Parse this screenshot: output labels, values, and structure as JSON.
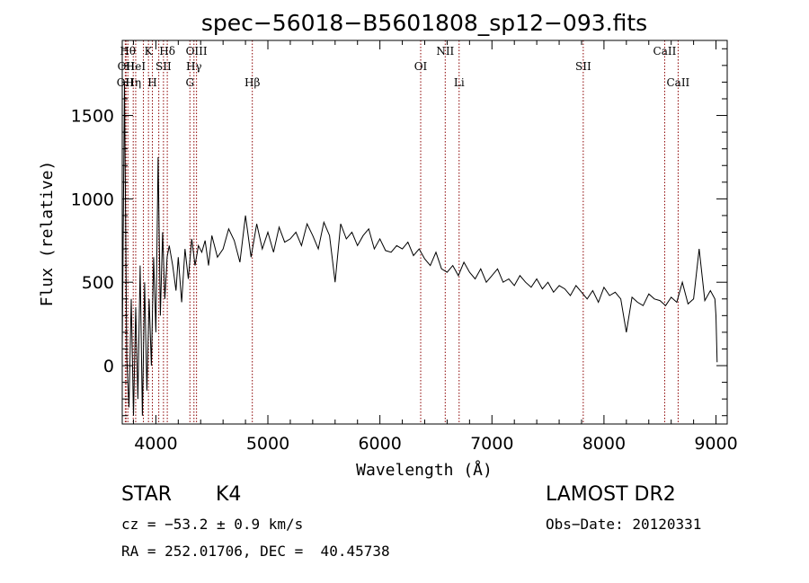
{
  "chart_data": {
    "type": "line",
    "title": "spec−56018−B5601808_sp12−093.fits",
    "xlabel": "Wavelength (Å)",
    "ylabel": "Flux (relative)",
    "xlim": [
      3700,
      9100
    ],
    "ylim": [
      -350,
      1950
    ],
    "xticks": [
      4000,
      5000,
      6000,
      7000,
      8000,
      9000
    ],
    "yticks": [
      0,
      500,
      1000,
      1500
    ],
    "series": [
      {
        "x": [
          3700,
          3720,
          3740,
          3760,
          3780,
          3800,
          3820,
          3840,
          3860,
          3880,
          3900,
          3920,
          3940,
          3960,
          3980,
          4000,
          4020,
          4040,
          4060,
          4080,
          4100,
          4120,
          4150,
          4180,
          4200,
          4230,
          4260,
          4290,
          4320,
          4350,
          4380,
          4410,
          4440,
          4470,
          4500,
          4550,
          4600,
          4650,
          4700,
          4750,
          4800,
          4850,
          4900,
          4950,
          5000,
          5050,
          5100,
          5150,
          5200,
          5250,
          5300,
          5350,
          5400,
          5450,
          5500,
          5550,
          5600,
          5650,
          5700,
          5750,
          5800,
          5850,
          5900,
          5950,
          6000,
          6050,
          6100,
          6150,
          6200,
          6250,
          6300,
          6350,
          6400,
          6450,
          6500,
          6550,
          6600,
          6650,
          6700,
          6750,
          6800,
          6850,
          6900,
          6950,
          7000,
          7050,
          7100,
          7150,
          7200,
          7250,
          7300,
          7350,
          7400,
          7450,
          7500,
          7550,
          7600,
          7650,
          7700,
          7750,
          7800,
          7850,
          7900,
          7950,
          8000,
          8050,
          8100,
          8150,
          8200,
          8250,
          8300,
          8350,
          8400,
          8450,
          8500,
          8550,
          8600,
          8650,
          8700,
          8750,
          8800,
          8850,
          8900,
          8950,
          8990,
          9000,
          9010
        ],
        "y": [
          100,
          1700,
          50,
          -250,
          400,
          -300,
          350,
          -200,
          600,
          -300,
          500,
          -150,
          400,
          0,
          650,
          200,
          1250,
          300,
          800,
          400,
          650,
          720,
          600,
          450,
          650,
          380,
          700,
          520,
          760,
          600,
          720,
          680,
          750,
          600,
          780,
          650,
          700,
          820,
          750,
          620,
          900,
          650,
          850,
          700,
          800,
          680,
          830,
          740,
          760,
          800,
          720,
          850,
          780,
          700,
          860,
          780,
          500,
          850,
          760,
          800,
          720,
          780,
          820,
          700,
          760,
          690,
          680,
          720,
          700,
          740,
          660,
          700,
          640,
          600,
          680,
          580,
          560,
          600,
          540,
          620,
          560,
          520,
          580,
          500,
          540,
          580,
          500,
          520,
          480,
          540,
          500,
          470,
          520,
          460,
          500,
          440,
          480,
          460,
          420,
          480,
          440,
          400,
          450,
          380,
          470,
          420,
          440,
          400,
          200,
          410,
          380,
          360,
          430,
          400,
          390,
          360,
          410,
          380,
          500,
          370,
          400,
          700,
          390,
          450,
          400,
          300,
          20
        ]
      }
    ],
    "lines": [
      {
        "wave": 3727,
        "label": "OII",
        "row": 3
      },
      {
        "wave": 3734,
        "label": "OII",
        "row": 2
      },
      {
        "wave": 3750,
        "label": "Hθ",
        "row": 1
      },
      {
        "wave": 3798,
        "label": "Hη",
        "row": 3
      },
      {
        "wave": 3820,
        "label": "HeI",
        "row": 2
      },
      {
        "wave": 3889,
        "label": "",
        "row": 0
      },
      {
        "wave": 3934,
        "label": "K",
        "row": 1
      },
      {
        "wave": 3969,
        "label": "H",
        "row": 3
      },
      {
        "wave": 4026,
        "label": "",
        "row": 0
      },
      {
        "wave": 4068,
        "label": "SII",
        "row": 2
      },
      {
        "wave": 4102,
        "label": "Hδ",
        "row": 1
      },
      {
        "wave": 4304,
        "label": "G",
        "row": 3
      },
      {
        "wave": 4340,
        "label": "Hγ",
        "row": 2
      },
      {
        "wave": 4363,
        "label": "OIII",
        "row": 1
      },
      {
        "wave": 4861,
        "label": "Hβ",
        "row": 3
      },
      {
        "wave": 6364,
        "label": "OI",
        "row": 2
      },
      {
        "wave": 6583,
        "label": "NII",
        "row": 1
      },
      {
        "wave": 6707,
        "label": "Li",
        "row": 3
      },
      {
        "wave": 7815,
        "label": "SII",
        "row": 2
      },
      {
        "wave": 8542,
        "label": "CaII",
        "row": 1
      },
      {
        "wave": 8662,
        "label": "CaII",
        "row": 3
      }
    ]
  },
  "info": {
    "class_label": "STAR",
    "subclass_label": "K4",
    "survey": "LAMOST DR2",
    "cz": "cz = −53.2 ± 0.9 km/s",
    "obs_date": "Obs−Date: 20120331",
    "coords": "RA = 252.01706, DEC =  40.45738"
  },
  "colors": {
    "spectrum": "#000000",
    "line_marker": "#8b0000",
    "axes": "#000000"
  }
}
